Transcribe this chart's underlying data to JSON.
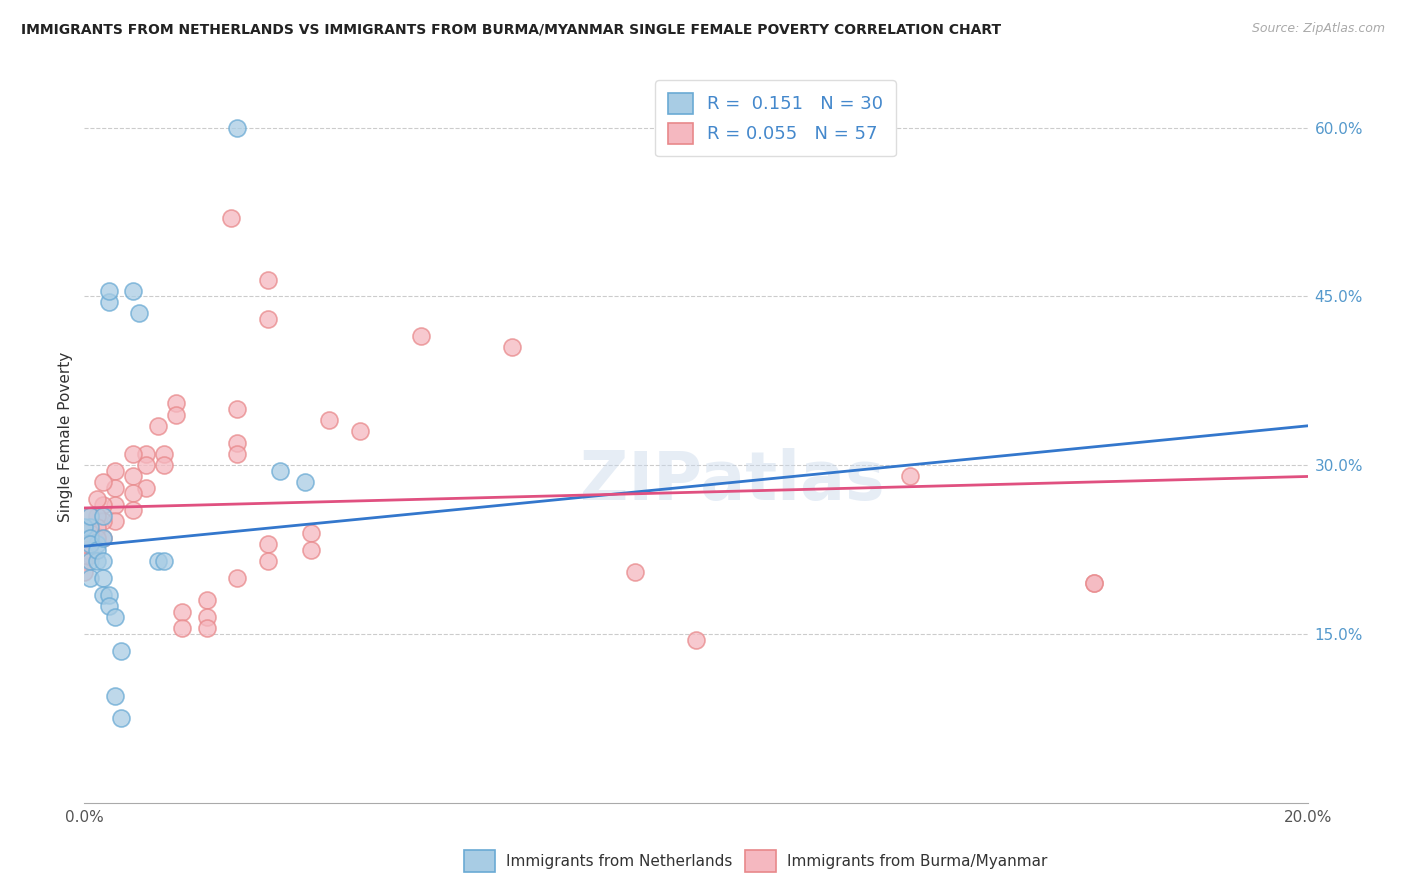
{
  "title": "IMMIGRANTS FROM NETHERLANDS VS IMMIGRANTS FROM BURMA/MYANMAR SINGLE FEMALE POVERTY CORRELATION CHART",
  "source": "Source: ZipAtlas.com",
  "ylabel": "Single Female Poverty",
  "legend_label1": "Immigrants from Netherlands",
  "legend_label2": "Immigrants from Burma/Myanmar",
  "legend_r1": "R =  0.151",
  "legend_n1": "N = 30",
  "legend_r2": "R = 0.055",
  "legend_n2": "N = 57",
  "xlim": [
    0.0,
    0.2
  ],
  "ylim": [
    0.0,
    0.65
  ],
  "xticks": [
    0.0,
    0.05,
    0.1,
    0.15,
    0.2
  ],
  "xtick_labels": [
    "0.0%",
    "",
    "",
    "",
    "20.0%"
  ],
  "yticks_right": [
    0.15,
    0.3,
    0.45,
    0.6
  ],
  "ytick_right_labels": [
    "15.0%",
    "30.0%",
    "45.0%",
    "60.0%"
  ],
  "color_blue_fill": "#a8cce4",
  "color_blue_edge": "#6aaad4",
  "color_pink_fill": "#f5b8c0",
  "color_pink_edge": "#e8888a",
  "color_blue_line": "#3377cc",
  "color_pink_line": "#e05080",
  "color_ytick_right": "#5599cc",
  "watermark": "ZIPatlas",
  "blue_points_x": [
    0.025,
    0.008,
    0.009,
    0.004,
    0.004,
    0.012,
    0.013,
    0.001,
    0.002,
    0.0,
    0.001,
    0.001,
    0.001,
    0.001,
    0.001,
    0.002,
    0.002,
    0.003,
    0.003,
    0.003,
    0.003,
    0.003,
    0.004,
    0.004,
    0.005,
    0.005,
    0.032,
    0.036,
    0.006,
    0.006
  ],
  "blue_points_y": [
    0.6,
    0.455,
    0.435,
    0.445,
    0.455,
    0.215,
    0.215,
    0.245,
    0.23,
    0.245,
    0.235,
    0.23,
    0.255,
    0.215,
    0.2,
    0.215,
    0.225,
    0.235,
    0.215,
    0.2,
    0.185,
    0.255,
    0.185,
    0.175,
    0.165,
    0.095,
    0.295,
    0.285,
    0.135,
    0.075
  ],
  "pink_points_x": [
    0.024,
    0.03,
    0.03,
    0.055,
    0.07,
    0.04,
    0.045,
    0.025,
    0.025,
    0.025,
    0.015,
    0.015,
    0.012,
    0.013,
    0.013,
    0.01,
    0.01,
    0.01,
    0.008,
    0.008,
    0.008,
    0.008,
    0.005,
    0.005,
    0.005,
    0.005,
    0.003,
    0.003,
    0.003,
    0.003,
    0.002,
    0.002,
    0.002,
    0.002,
    0.001,
    0.001,
    0.001,
    0.001,
    0.0,
    0.0,
    0.0,
    0.0,
    0.037,
    0.037,
    0.03,
    0.03,
    0.025,
    0.02,
    0.02,
    0.02,
    0.016,
    0.016,
    0.09,
    0.1,
    0.135,
    0.165,
    0.165
  ],
  "pink_points_y": [
    0.52,
    0.465,
    0.43,
    0.415,
    0.405,
    0.34,
    0.33,
    0.35,
    0.32,
    0.31,
    0.355,
    0.345,
    0.335,
    0.31,
    0.3,
    0.31,
    0.3,
    0.28,
    0.31,
    0.29,
    0.275,
    0.26,
    0.295,
    0.28,
    0.265,
    0.25,
    0.285,
    0.265,
    0.25,
    0.235,
    0.27,
    0.255,
    0.245,
    0.235,
    0.255,
    0.24,
    0.23,
    0.22,
    0.24,
    0.225,
    0.215,
    0.205,
    0.24,
    0.225,
    0.23,
    0.215,
    0.2,
    0.18,
    0.165,
    0.155,
    0.17,
    0.155,
    0.205,
    0.145,
    0.29,
    0.195,
    0.195
  ],
  "blue_line_x": [
    0.0,
    0.2
  ],
  "blue_line_y": [
    0.228,
    0.335
  ],
  "pink_line_x": [
    0.0,
    0.2
  ],
  "pink_line_y": [
    0.262,
    0.29
  ]
}
